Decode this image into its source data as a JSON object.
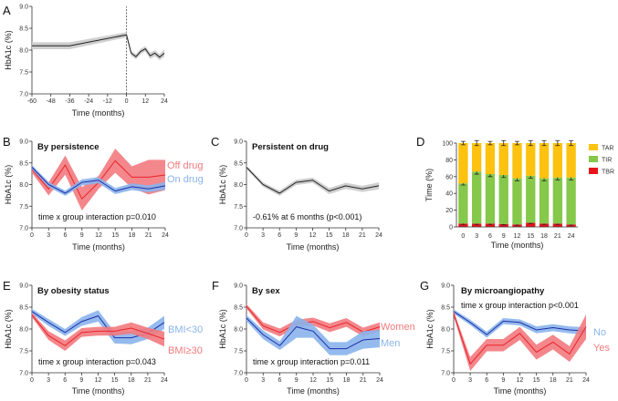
{
  "colors": {
    "red": "#e8232b",
    "red_band": "#f27a7e",
    "blue": "#1f2fa8",
    "blue_band": "#8ab4ec",
    "black": "#222222",
    "gray_band": "#cfcfcf",
    "TAR": "#fcc20f",
    "TIR": "#86c84a",
    "TBR": "#e8141c"
  },
  "chart_data": [
    {
      "panel": "A",
      "type": "line",
      "title": "",
      "xlabel": "Time (months)",
      "ylabel": "HbA1c (%)",
      "xlim": [
        -60,
        24
      ],
      "ylim": [
        7.0,
        9.0
      ],
      "xticks": [
        "-60",
        "-48",
        "-36",
        "-24",
        "-12",
        "0",
        "12",
        "24"
      ],
      "yticks": [
        "7.0",
        "7.5",
        "8.0",
        "8.5",
        "9.0"
      ],
      "vline_x": 0,
      "series": [
        {
          "color": "black",
          "x": [
            -60,
            -36,
            0,
            3,
            6,
            9,
            12,
            15,
            18,
            21,
            24
          ],
          "y": [
            8.1,
            8.1,
            8.35,
            7.93,
            7.85,
            7.97,
            8.03,
            7.87,
            7.93,
            7.84,
            7.93
          ],
          "band": [
            0.08,
            0.08,
            0.06,
            0.06,
            0.06,
            0.06,
            0.06,
            0.07,
            0.07,
            0.07,
            0.08
          ]
        }
      ]
    },
    {
      "panel": "B",
      "type": "line",
      "title": "By persistence",
      "xlabel": "Time (months)",
      "ylabel": "HbA1c (%)",
      "xlim": [
        0,
        24
      ],
      "ylim": [
        7.0,
        9.0
      ],
      "xticks": [
        "0",
        "3",
        "6",
        "9",
        "12",
        "15",
        "18",
        "21",
        "24"
      ],
      "yticks": [
        "7.0",
        "7.5",
        "8.0",
        "8.5",
        "9.0"
      ],
      "annotation": "time x group interaction p=0.010",
      "series": [
        {
          "name": "Off drug",
          "color": "red",
          "x": [
            0,
            3,
            6,
            9,
            12,
            15,
            18,
            21,
            24
          ],
          "y": [
            8.35,
            7.9,
            8.45,
            7.67,
            8.05,
            8.55,
            8.17,
            8.17,
            8.22
          ],
          "band": [
            0.08,
            0.15,
            0.22,
            0.27,
            0.15,
            0.28,
            0.25,
            0.4,
            0.35
          ]
        },
        {
          "name": "On drug",
          "color": "blue",
          "x": [
            0,
            3,
            6,
            9,
            12,
            15,
            18,
            21,
            24
          ],
          "y": [
            8.4,
            8.0,
            7.8,
            8.05,
            8.1,
            7.85,
            7.95,
            7.9,
            7.97
          ],
          "band": [
            0.05,
            0.06,
            0.06,
            0.07,
            0.07,
            0.07,
            0.08,
            0.08,
            0.09
          ]
        }
      ]
    },
    {
      "panel": "C",
      "type": "line",
      "title": "Persistent on drug",
      "xlabel": "Time (months)",
      "ylabel": "HbA1c (%)",
      "xlim": [
        0,
        24
      ],
      "ylim": [
        7.0,
        9.0
      ],
      "xticks": [
        "0",
        "3",
        "6",
        "9",
        "12",
        "15",
        "18",
        "21",
        "24"
      ],
      "yticks": [
        "7.0",
        "7.5",
        "8.0",
        "8.5",
        "9.0"
      ],
      "annotation": "-0.61% at 6 months (p<0.001)",
      "series": [
        {
          "color": "black",
          "x": [
            0,
            3,
            6,
            9,
            12,
            15,
            18,
            21,
            24
          ],
          "y": [
            8.4,
            8.0,
            7.8,
            8.05,
            8.1,
            7.85,
            7.97,
            7.9,
            7.97
          ],
          "band": [
            0.04,
            0.05,
            0.06,
            0.06,
            0.06,
            0.07,
            0.07,
            0.07,
            0.08
          ]
        }
      ]
    },
    {
      "panel": "D",
      "type": "bar",
      "stacked": true,
      "title": "",
      "xlabel": "Time (months)",
      "ylabel": "Time (%)",
      "ylim": [
        0,
        100
      ],
      "categories": [
        "0",
        "3",
        "6",
        "9",
        "12",
        "15",
        "18",
        "21",
        "24"
      ],
      "yticks": [
        "0",
        "20",
        "40",
        "60",
        "80",
        "100"
      ],
      "legend": "right",
      "series": [
        {
          "name": "TBR",
          "color": "TBR",
          "values": [
            4,
            4,
            4,
            3.5,
            3,
            5,
            4,
            4,
            3
          ],
          "err": [
            1,
            1,
            1,
            1,
            1,
            1,
            1,
            1,
            1
          ]
        },
        {
          "name": "TIR",
          "color": "TIR",
          "values": [
            48,
            62,
            59,
            58.5,
            55,
            56,
            54,
            55,
            56
          ],
          "err": [
            2,
            3,
            3,
            3,
            3,
            3,
            3,
            3,
            3
          ]
        },
        {
          "name": "TAR",
          "color": "TAR",
          "values": [
            48,
            34,
            37,
            38,
            42,
            39,
            42,
            41,
            41
          ],
          "err": [
            2,
            3,
            2,
            3,
            2,
            3,
            3,
            3,
            3
          ]
        }
      ]
    },
    {
      "panel": "E",
      "type": "line",
      "title": "By obesity status",
      "xlabel": "Time (months)",
      "ylabel": "HbA1c (%)",
      "xlim": [
        0,
        24
      ],
      "ylim": [
        7.0,
        9.0
      ],
      "xticks": [
        "0",
        "3",
        "6",
        "9",
        "12",
        "15",
        "18",
        "21",
        "24"
      ],
      "yticks": [
        "7.0",
        "7.5",
        "8.0",
        "8.5",
        "9.0"
      ],
      "annotation": "time x group interaction p=0.043",
      "series": [
        {
          "name": "BMI<30",
          "color": "blue",
          "x": [
            0,
            3,
            6,
            9,
            12,
            15,
            18,
            21,
            24
          ],
          "y": [
            8.4,
            8.15,
            7.92,
            8.17,
            8.3,
            7.8,
            7.8,
            7.9,
            8.15
          ],
          "band": [
            0.06,
            0.08,
            0.08,
            0.1,
            0.13,
            0.13,
            0.15,
            0.13,
            0.15
          ]
        },
        {
          "name": "BMI≥30",
          "color": "red",
          "x": [
            0,
            3,
            6,
            9,
            12,
            15,
            18,
            21,
            24
          ],
          "y": [
            8.32,
            7.85,
            7.62,
            7.92,
            7.95,
            7.95,
            8.02,
            7.9,
            7.77
          ],
          "band": [
            0.05,
            0.1,
            0.12,
            0.1,
            0.1,
            0.1,
            0.13,
            0.13,
            0.17
          ]
        }
      ]
    },
    {
      "panel": "F",
      "type": "line",
      "title": "By sex",
      "xlabel": "Time (months)",
      "ylabel": "HbA1c (%)",
      "xlim": [
        0,
        24
      ],
      "ylim": [
        7.0,
        9.0
      ],
      "xticks": [
        "0",
        "3",
        "6",
        "9",
        "12",
        "15",
        "18",
        "21",
        "24"
      ],
      "yticks": [
        "7.0",
        "7.5",
        "8.0",
        "8.5",
        "9.0"
      ],
      "annotation": "time x group interaction p=0.011",
      "series": [
        {
          "name": "Women",
          "color": "red",
          "x": [
            0,
            3,
            6,
            9,
            12,
            15,
            18,
            21,
            24
          ],
          "y": [
            8.52,
            8.07,
            7.92,
            8.12,
            8.17,
            8.03,
            8.15,
            7.93,
            8.05
          ],
          "band": [
            0.05,
            0.08,
            0.09,
            0.09,
            0.09,
            0.1,
            0.1,
            0.1,
            0.1
          ]
        },
        {
          "name": "Men",
          "color": "blue",
          "x": [
            0,
            3,
            6,
            9,
            12,
            15,
            18,
            21,
            24
          ],
          "y": [
            8.25,
            7.87,
            7.62,
            8.05,
            7.95,
            7.55,
            7.55,
            7.75,
            7.78
          ],
          "band": [
            0.07,
            0.1,
            0.1,
            0.25,
            0.15,
            0.15,
            0.15,
            0.2,
            0.2
          ]
        }
      ]
    },
    {
      "panel": "G",
      "type": "line",
      "title": "By microangiopathy",
      "xlabel": "Time (months)",
      "ylabel": "HbA1c (%)",
      "xlim": [
        0,
        24
      ],
      "ylim": [
        7.0,
        9.0
      ],
      "xticks": [
        "0",
        "3",
        "6",
        "9",
        "12",
        "15",
        "18",
        "21",
        "24"
      ],
      "yticks": [
        "7.0",
        "7.5",
        "8.0",
        "8.5",
        "9.0"
      ],
      "annotation": "time x group interaction p<0.001",
      "series": [
        {
          "name": "No",
          "color": "blue",
          "x": [
            0,
            3,
            6,
            9,
            12,
            15,
            18,
            21,
            24
          ],
          "y": [
            8.4,
            8.15,
            7.87,
            8.18,
            8.15,
            7.98,
            8.03,
            7.98,
            7.95
          ],
          "band": [
            0.05,
            0.06,
            0.07,
            0.07,
            0.07,
            0.08,
            0.08,
            0.08,
            0.09
          ]
        },
        {
          "name": "Yes",
          "color": "red",
          "x": [
            0,
            3,
            6,
            9,
            12,
            15,
            18,
            21,
            24
          ],
          "y": [
            8.35,
            7.2,
            7.63,
            7.63,
            7.9,
            7.47,
            7.7,
            7.43,
            8.05
          ],
          "band": [
            0.06,
            0.16,
            0.14,
            0.14,
            0.15,
            0.17,
            0.17,
            0.18,
            0.28
          ]
        }
      ]
    }
  ]
}
